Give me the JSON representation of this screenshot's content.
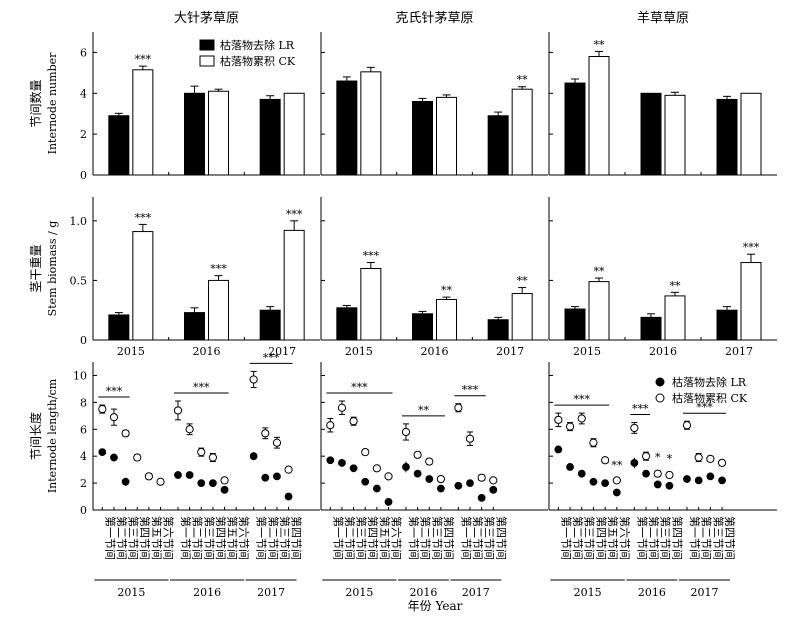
{
  "chart_data": {
    "type": "bar",
    "columns": [
      {
        "title": "大针茅草原"
      },
      {
        "title": "克氏针茅草原"
      },
      {
        "title": "羊草草原"
      }
    ],
    "legend": {
      "bar": [
        {
          "name": "枯落物去除 LR",
          "color": "#000000"
        },
        {
          "name": "枯落物累积 CK",
          "color": "#ffffff"
        }
      ],
      "scatter": [
        {
          "name": "枯落物去除 LR",
          "marker": "filled-circle"
        },
        {
          "name": "枯落物累积 CK",
          "marker": "open-circle"
        }
      ]
    },
    "years": [
      "2015",
      "2016",
      "2017"
    ],
    "x_title": "年份 Year",
    "internode_labels": [
      "第一节间",
      "第二节间",
      "第三节间",
      "第四节间",
      "第五节间",
      "第六节间"
    ],
    "rows": [
      {
        "key": "internode_number",
        "kind": "bar",
        "ylabel_cn": "节间数量",
        "ylabel_en": "Internode number",
        "ylim": [
          0,
          7
        ],
        "yticks": [
          "0",
          "2",
          "4",
          "6"
        ],
        "panels": [
          {
            "LR": [
              2.9,
              4.0,
              3.7
            ],
            "LR_err": [
              0.12,
              0.35,
              0.18
            ],
            "CK": [
              5.15,
              4.1,
              4.0
            ],
            "CK_err": [
              0.18,
              0.1,
              0.0
            ],
            "sig": [
              "***",
              "",
              ""
            ]
          },
          {
            "LR": [
              4.6,
              3.6,
              2.9
            ],
            "LR_err": [
              0.2,
              0.15,
              0.18
            ],
            "CK": [
              5.05,
              3.8,
              4.2
            ],
            "CK_err": [
              0.22,
              0.12,
              0.12
            ],
            "sig": [
              "",
              "",
              "**"
            ]
          },
          {
            "LR": [
              4.5,
              4.0,
              3.7
            ],
            "LR_err": [
              0.2,
              0.0,
              0.15
            ],
            "CK": [
              5.8,
              3.9,
              4.0
            ],
            "CK_err": [
              0.25,
              0.15,
              0.0
            ],
            "sig": [
              "**",
              "",
              ""
            ]
          }
        ]
      },
      {
        "key": "stem_biomass",
        "kind": "bar",
        "ylabel_cn": "茎干重量",
        "ylabel_en": "Stem biomass / g",
        "ylim": [
          0,
          1.2
        ],
        "yticks": [
          "0",
          "0.5",
          "1.0"
        ],
        "panels": [
          {
            "LR": [
              0.21,
              0.23,
              0.25
            ],
            "LR_err": [
              0.02,
              0.04,
              0.03
            ],
            "CK": [
              0.91,
              0.5,
              0.92
            ],
            "CK_err": [
              0.06,
              0.04,
              0.08
            ],
            "sig": [
              "***",
              "***",
              "***"
            ]
          },
          {
            "LR": [
              0.27,
              0.22,
              0.17
            ],
            "LR_err": [
              0.02,
              0.02,
              0.02
            ],
            "CK": [
              0.6,
              0.34,
              0.39
            ],
            "CK_err": [
              0.05,
              0.02,
              0.05
            ],
            "sig": [
              "***",
              "**",
              "**"
            ]
          },
          {
            "LR": [
              0.26,
              0.19,
              0.25
            ],
            "LR_err": [
              0.02,
              0.03,
              0.03
            ],
            "CK": [
              0.49,
              0.37,
              0.65
            ],
            "CK_err": [
              0.03,
              0.03,
              0.07
            ],
            "sig": [
              "**",
              "**",
              "***"
            ]
          }
        ]
      },
      {
        "key": "internode_length",
        "kind": "scatter",
        "ylabel_cn": "节间长度",
        "ylabel_en": "Internode length/cm",
        "ylim": [
          0,
          11
        ],
        "yticks": [
          "0",
          "2",
          "4",
          "6",
          "8",
          "10"
        ],
        "panels": [
          {
            "groups": [
              {
                "year": "2015",
                "n": 6,
                "LR": [
                  4.3,
                  3.9,
                  2.1,
                  null,
                  null,
                  null
                ],
                "LR_err": [
                  0.2,
                  0.3,
                  0.3,
                  null,
                  null,
                  null
                ],
                "CK": [
                  7.5,
                  6.9,
                  5.7,
                  3.9,
                  2.5,
                  2.1
                ],
                "CK_err": [
                  0.3,
                  0.6,
                  0.2,
                  0.2,
                  0.2,
                  0.1
                ],
                "sig": [
                  {
                    "text": "***",
                    "from": 0,
                    "to": 2
                  }
                ]
              },
              {
                "year": "2016",
                "n": 6,
                "LR": [
                  2.6,
                  2.6,
                  2.0,
                  2.0,
                  1.5,
                  null
                ],
                "LR_err": [
                  0.3,
                  0.2,
                  0.1,
                  0.1,
                  0.1,
                  null
                ],
                "CK": [
                  7.4,
                  6.0,
                  4.3,
                  3.9,
                  2.2,
                  null
                ],
                "CK_err": [
                  0.7,
                  0.4,
                  0.3,
                  0.3,
                  0.2,
                  null
                ],
                "sig": [
                  {
                    "text": "***",
                    "from": 0,
                    "to": 4
                  }
                ]
              },
              {
                "year": "2017",
                "n": 4,
                "LR": [
                  4.0,
                  2.4,
                  2.5,
                  1.0
                ],
                "LR_err": [
                  0.3,
                  0.1,
                  0.1,
                  0.1
                ],
                "CK": [
                  9.7,
                  5.7,
                  5.0,
                  3.0
                ],
                "CK_err": [
                  0.6,
                  0.4,
                  0.4,
                  0.1
                ],
                "sig": [
                  {
                    "text": "***",
                    "from": 0,
                    "to": 3
                  }
                ]
              }
            ]
          },
          {
            "groups": [
              {
                "year": "2015",
                "n": 6,
                "LR": [
                  3.7,
                  3.5,
                  3.1,
                  2.1,
                  1.6,
                  0.6
                ],
                "LR_err": [
                  0.2,
                  0.3,
                  0.2,
                  0.1,
                  0.1,
                  0.1
                ],
                "CK": [
                  6.3,
                  7.6,
                  6.6,
                  4.3,
                  3.1,
                  2.5
                ],
                "CK_err": [
                  0.5,
                  0.5,
                  0.3,
                  0.2,
                  0.1,
                  0.1
                ],
                "sig": [
                  {
                    "text": "***",
                    "from": 0,
                    "to": 5
                  }
                ]
              },
              {
                "year": "2016",
                "n": 4,
                "LR": [
                  3.2,
                  2.7,
                  2.3,
                  1.6
                ],
                "LR_err": [
                  0.4,
                  0.2,
                  0.2,
                  0.2
                ],
                "CK": [
                  5.8,
                  4.1,
                  3.6,
                  2.3
                ],
                "CK_err": [
                  0.6,
                  0.2,
                  0.2,
                  0.2
                ],
                "sig": [
                  {
                    "text": "**",
                    "from": 0,
                    "to": 3
                  }
                ]
              },
              {
                "year": "2017",
                "n": 4,
                "LR": [
                  1.8,
                  2.0,
                  0.9,
                  1.5
                ],
                "LR_err": [
                  0.1,
                  0.1,
                  0.1,
                  0.1
                ],
                "CK": [
                  7.6,
                  5.3,
                  2.4,
                  2.2
                ],
                "CK_err": [
                  0.3,
                  0.5,
                  0.2,
                  0.1
                ],
                "sig": [
                  {
                    "text": "***",
                    "from": 0,
                    "to": 2
                  }
                ]
              }
            ]
          },
          {
            "groups": [
              {
                "year": "2015",
                "n": 6,
                "LR": [
                  4.5,
                  3.2,
                  2.7,
                  2.1,
                  2.0,
                  1.3
                ],
                "LR_err": [
                  0.2,
                  0.2,
                  0.2,
                  0.1,
                  0.1,
                  0.1
                ],
                "CK": [
                  6.7,
                  6.2,
                  6.8,
                  5.0,
                  3.7,
                  2.2
                ],
                "CK_err": [
                  0.5,
                  0.3,
                  0.4,
                  0.3,
                  0.2,
                  0.1
                ],
                "sig": [
                  {
                    "text": "***",
                    "from": 0,
                    "to": 4
                  },
                  {
                    "text": "**",
                    "from": 5,
                    "to": 5
                  }
                ]
              },
              {
                "year": "2016",
                "n": 4,
                "LR": [
                  3.5,
                  2.7,
                  1.9,
                  1.8
                ],
                "LR_err": [
                  0.4,
                  0.2,
                  0.1,
                  0.1
                ],
                "CK": [
                  6.1,
                  4.0,
                  2.7,
                  2.6
                ],
                "CK_err": [
                  0.4,
                  0.3,
                  0.2,
                  0.2
                ],
                "sig": [
                  {
                    "text": "***",
                    "from": 0,
                    "to": 1
                  },
                  {
                    "text": "*",
                    "from": 2,
                    "to": 2
                  },
                  {
                    "text": "*",
                    "from": 3,
                    "to": 3
                  }
                ]
              },
              {
                "year": "2017",
                "n": 4,
                "LR": [
                  2.3,
                  2.2,
                  2.5,
                  2.2
                ],
                "LR_err": [
                  0.1,
                  0.1,
                  0.1,
                  0.1
                ],
                "CK": [
                  6.3,
                  3.9,
                  3.8,
                  3.5
                ],
                "CK_err": [
                  0.3,
                  0.3,
                  0.2,
                  0.2
                ],
                "sig": [
                  {
                    "text": "***",
                    "from": 0,
                    "to": 3
                  }
                ]
              }
            ]
          }
        ]
      }
    ]
  }
}
